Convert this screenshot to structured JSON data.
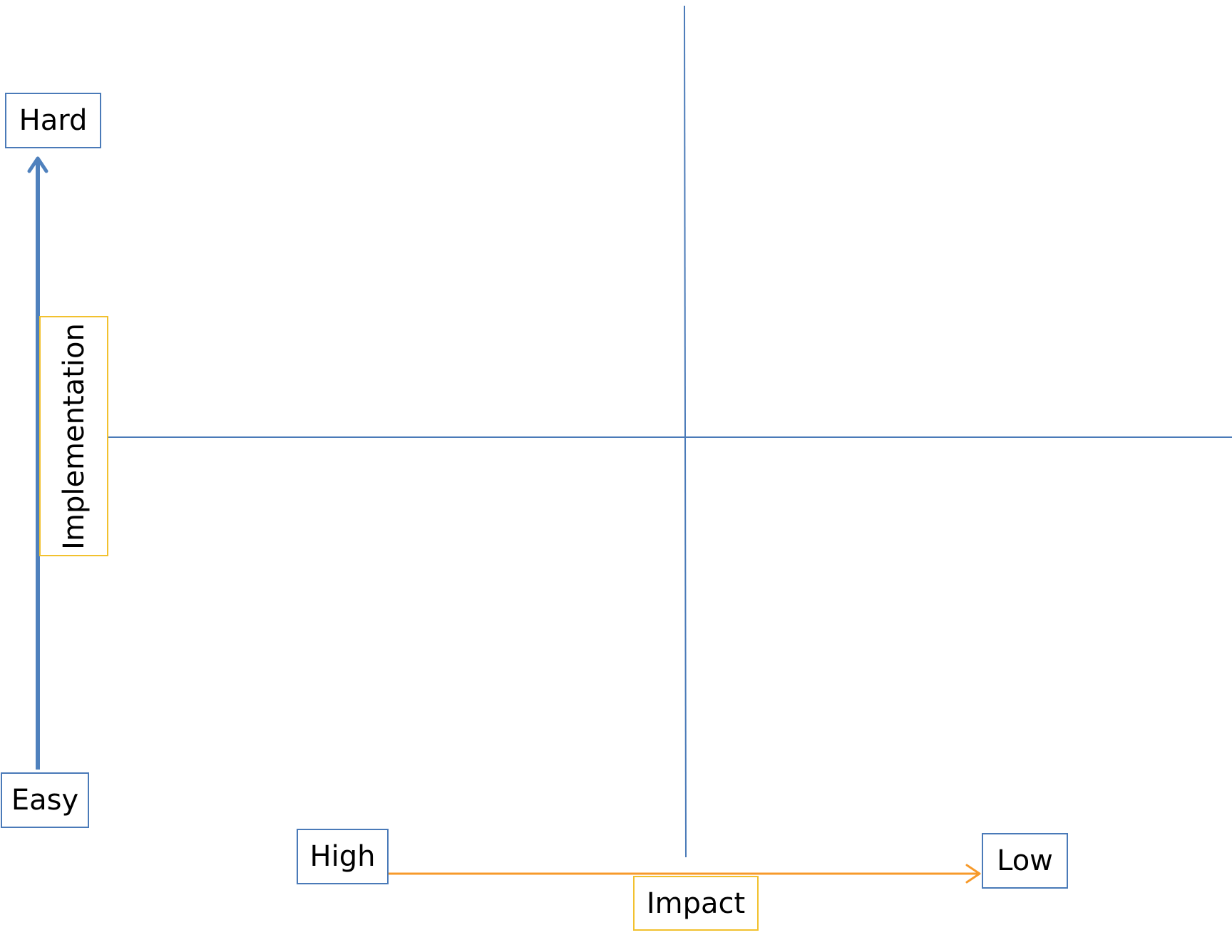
{
  "diagram": {
    "colors": {
      "axis_line": "#4a7ab8",
      "implementation_arrow": "#4f81bd",
      "impact_arrow": "#f79a2b",
      "label_box_border": "#4a7ab8",
      "axis_title_box_border": "#f2c12e",
      "background": "#ffffff"
    },
    "vertical_axis": {
      "title": "Implementation",
      "top_label": "Hard",
      "bottom_label": "Easy"
    },
    "horizontal_axis": {
      "title": "Impact",
      "left_label": "High",
      "right_label": "Low"
    }
  }
}
